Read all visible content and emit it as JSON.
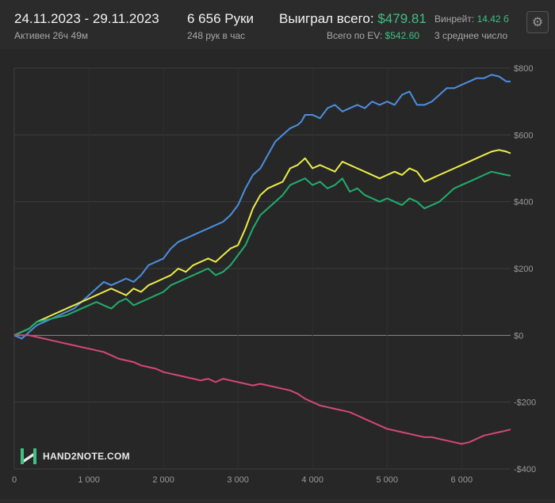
{
  "header": {
    "date_range": "24.11.2023 - 29.11.2023",
    "active_time": "Активен 26ч 49м",
    "hands": "6 656 Руки",
    "hands_per_hour": "248 рук в час",
    "won_label": "Выиграл всего:",
    "won_value": "$479.81",
    "ev_label": "Всего по EV:",
    "ev_value": "$542.60",
    "winrate_label": "Винрейт:",
    "winrate_value": "14.42 б",
    "avg_label": "3 среднее число"
  },
  "settings_icon": "gear-icon",
  "logo": {
    "text": "HAND2NOTE.COM",
    "icon": "hand2note-logo-icon"
  },
  "colors": {
    "background": "#2b2b2b",
    "blue": "#4b8fe0",
    "yellow": "#ecec48",
    "green": "#1fae6d",
    "red": "#d5477a",
    "accent_green": "#3fc084"
  },
  "chart_data": {
    "type": "line",
    "xlim": [
      0,
      6656
    ],
    "ylim": [
      -400,
      800
    ],
    "x_ticks": [
      0,
      1000,
      2000,
      3000,
      4000,
      5000,
      6000
    ],
    "x_tick_labels": [
      "0",
      "1 000",
      "2 000",
      "3 000",
      "4 000",
      "5 000",
      "6 000"
    ],
    "y_ticks": [
      800,
      600,
      400,
      200,
      0,
      -200,
      -400
    ],
    "y_tick_labels": [
      "$800",
      "$600",
      "$400",
      "$200",
      "$0",
      "-$200",
      "-$400"
    ],
    "grid": true,
    "series": [
      {
        "color": "#4b8fe0",
        "x": [
          0,
          100,
          200,
          300,
          400,
          500,
          600,
          700,
          800,
          900,
          1000,
          1100,
          1200,
          1300,
          1400,
          1500,
          1600,
          1700,
          1800,
          1900,
          2000,
          2100,
          2200,
          2300,
          2400,
          2500,
          2600,
          2700,
          2800,
          2900,
          3000,
          3100,
          3200,
          3300,
          3400,
          3500,
          3600,
          3700,
          3800,
          3850,
          3900,
          4000,
          4100,
          4200,
          4300,
          4400,
          4500,
          4600,
          4700,
          4800,
          4900,
          5000,
          5100,
          5200,
          5300,
          5400,
          5500,
          5600,
          5700,
          5800,
          5900,
          6000,
          6100,
          6200,
          6300,
          6400,
          6500,
          6600,
          6656
        ],
        "values": [
          0,
          -10,
          10,
          30,
          40,
          50,
          60,
          70,
          80,
          100,
          120,
          140,
          160,
          150,
          160,
          170,
          160,
          180,
          210,
          220,
          230,
          260,
          280,
          290,
          300,
          310,
          320,
          330,
          340,
          360,
          390,
          440,
          480,
          500,
          540,
          580,
          600,
          620,
          630,
          640,
          660,
          660,
          650,
          680,
          690,
          670,
          680,
          690,
          680,
          700,
          690,
          700,
          690,
          720,
          730,
          690,
          690,
          700,
          720,
          740,
          740,
          750,
          760,
          770,
          770,
          780,
          775,
          760,
          760
        ]
      },
      {
        "color": "#ecec48",
        "x": [
          0,
          100,
          200,
          300,
          400,
          500,
          600,
          700,
          800,
          900,
          1000,
          1100,
          1200,
          1300,
          1400,
          1500,
          1600,
          1700,
          1800,
          1900,
          2000,
          2100,
          2200,
          2300,
          2400,
          2500,
          2600,
          2700,
          2800,
          2900,
          3000,
          3100,
          3200,
          3300,
          3400,
          3500,
          3600,
          3700,
          3800,
          3900,
          4000,
          4100,
          4200,
          4300,
          4400,
          4500,
          4600,
          4700,
          4800,
          4900,
          5000,
          5100,
          5200,
          5300,
          5400,
          5500,
          5600,
          5700,
          5800,
          5900,
          6000,
          6100,
          6200,
          6300,
          6400,
          6500,
          6600,
          6656
        ],
        "values": [
          0,
          10,
          20,
          40,
          50,
          60,
          70,
          80,
          90,
          100,
          110,
          120,
          130,
          140,
          130,
          120,
          140,
          130,
          150,
          160,
          170,
          180,
          200,
          190,
          210,
          220,
          230,
          220,
          240,
          260,
          270,
          320,
          380,
          420,
          440,
          450,
          460,
          500,
          510,
          530,
          500,
          510,
          500,
          490,
          520,
          510,
          500,
          490,
          480,
          470,
          480,
          490,
          480,
          500,
          490,
          460,
          470,
          480,
          490,
          500,
          510,
          520,
          530,
          540,
          550,
          555,
          550,
          545
        ]
      },
      {
        "color": "#1fae6d",
        "x": [
          0,
          100,
          200,
          300,
          400,
          500,
          600,
          700,
          800,
          900,
          1000,
          1100,
          1200,
          1300,
          1400,
          1500,
          1600,
          1700,
          1800,
          1900,
          2000,
          2100,
          2200,
          2300,
          2400,
          2500,
          2600,
          2700,
          2800,
          2900,
          3000,
          3100,
          3200,
          3300,
          3400,
          3500,
          3600,
          3700,
          3800,
          3900,
          4000,
          4100,
          4200,
          4300,
          4400,
          4500,
          4600,
          4700,
          4800,
          4900,
          5000,
          5100,
          5200,
          5300,
          5400,
          5500,
          5600,
          5700,
          5800,
          5900,
          6000,
          6100,
          6200,
          6300,
          6400,
          6500,
          6600,
          6656
        ],
        "values": [
          0,
          10,
          20,
          40,
          45,
          50,
          55,
          60,
          70,
          80,
          90,
          100,
          90,
          80,
          100,
          110,
          90,
          100,
          110,
          120,
          130,
          150,
          160,
          170,
          180,
          190,
          200,
          180,
          190,
          210,
          240,
          270,
          320,
          360,
          380,
          400,
          420,
          450,
          460,
          470,
          450,
          460,
          440,
          450,
          470,
          430,
          440,
          420,
          410,
          400,
          410,
          400,
          390,
          410,
          400,
          380,
          390,
          400,
          420,
          440,
          450,
          460,
          470,
          480,
          490,
          485,
          480,
          478
        ]
      },
      {
        "color": "#d5477a",
        "x": [
          0,
          100,
          200,
          300,
          400,
          500,
          600,
          700,
          800,
          900,
          1000,
          1100,
          1200,
          1300,
          1400,
          1500,
          1600,
          1700,
          1800,
          1900,
          2000,
          2100,
          2200,
          2300,
          2400,
          2500,
          2600,
          2700,
          2800,
          2900,
          3000,
          3100,
          3200,
          3300,
          3400,
          3500,
          3600,
          3700,
          3800,
          3900,
          4000,
          4100,
          4200,
          4300,
          4400,
          4500,
          4600,
          4700,
          4800,
          4900,
          5000,
          5100,
          5200,
          5300,
          5400,
          5500,
          5600,
          5700,
          5800,
          5900,
          6000,
          6100,
          6200,
          6300,
          6400,
          6500,
          6600,
          6656
        ],
        "values": [
          0,
          0,
          0,
          -5,
          -10,
          -15,
          -20,
          -25,
          -30,
          -35,
          -40,
          -45,
          -50,
          -60,
          -70,
          -75,
          -80,
          -90,
          -95,
          -100,
          -110,
          -115,
          -120,
          -125,
          -130,
          -135,
          -130,
          -140,
          -130,
          -135,
          -140,
          -145,
          -150,
          -145,
          -150,
          -155,
          -160,
          -165,
          -175,
          -190,
          -200,
          -210,
          -215,
          -220,
          -225,
          -230,
          -240,
          -250,
          -260,
          -270,
          -280,
          -285,
          -290,
          -295,
          -300,
          -305,
          -305,
          -310,
          -315,
          -320,
          -325,
          -320,
          -310,
          -300,
          -295,
          -290,
          -285,
          -282
        ]
      }
    ]
  }
}
